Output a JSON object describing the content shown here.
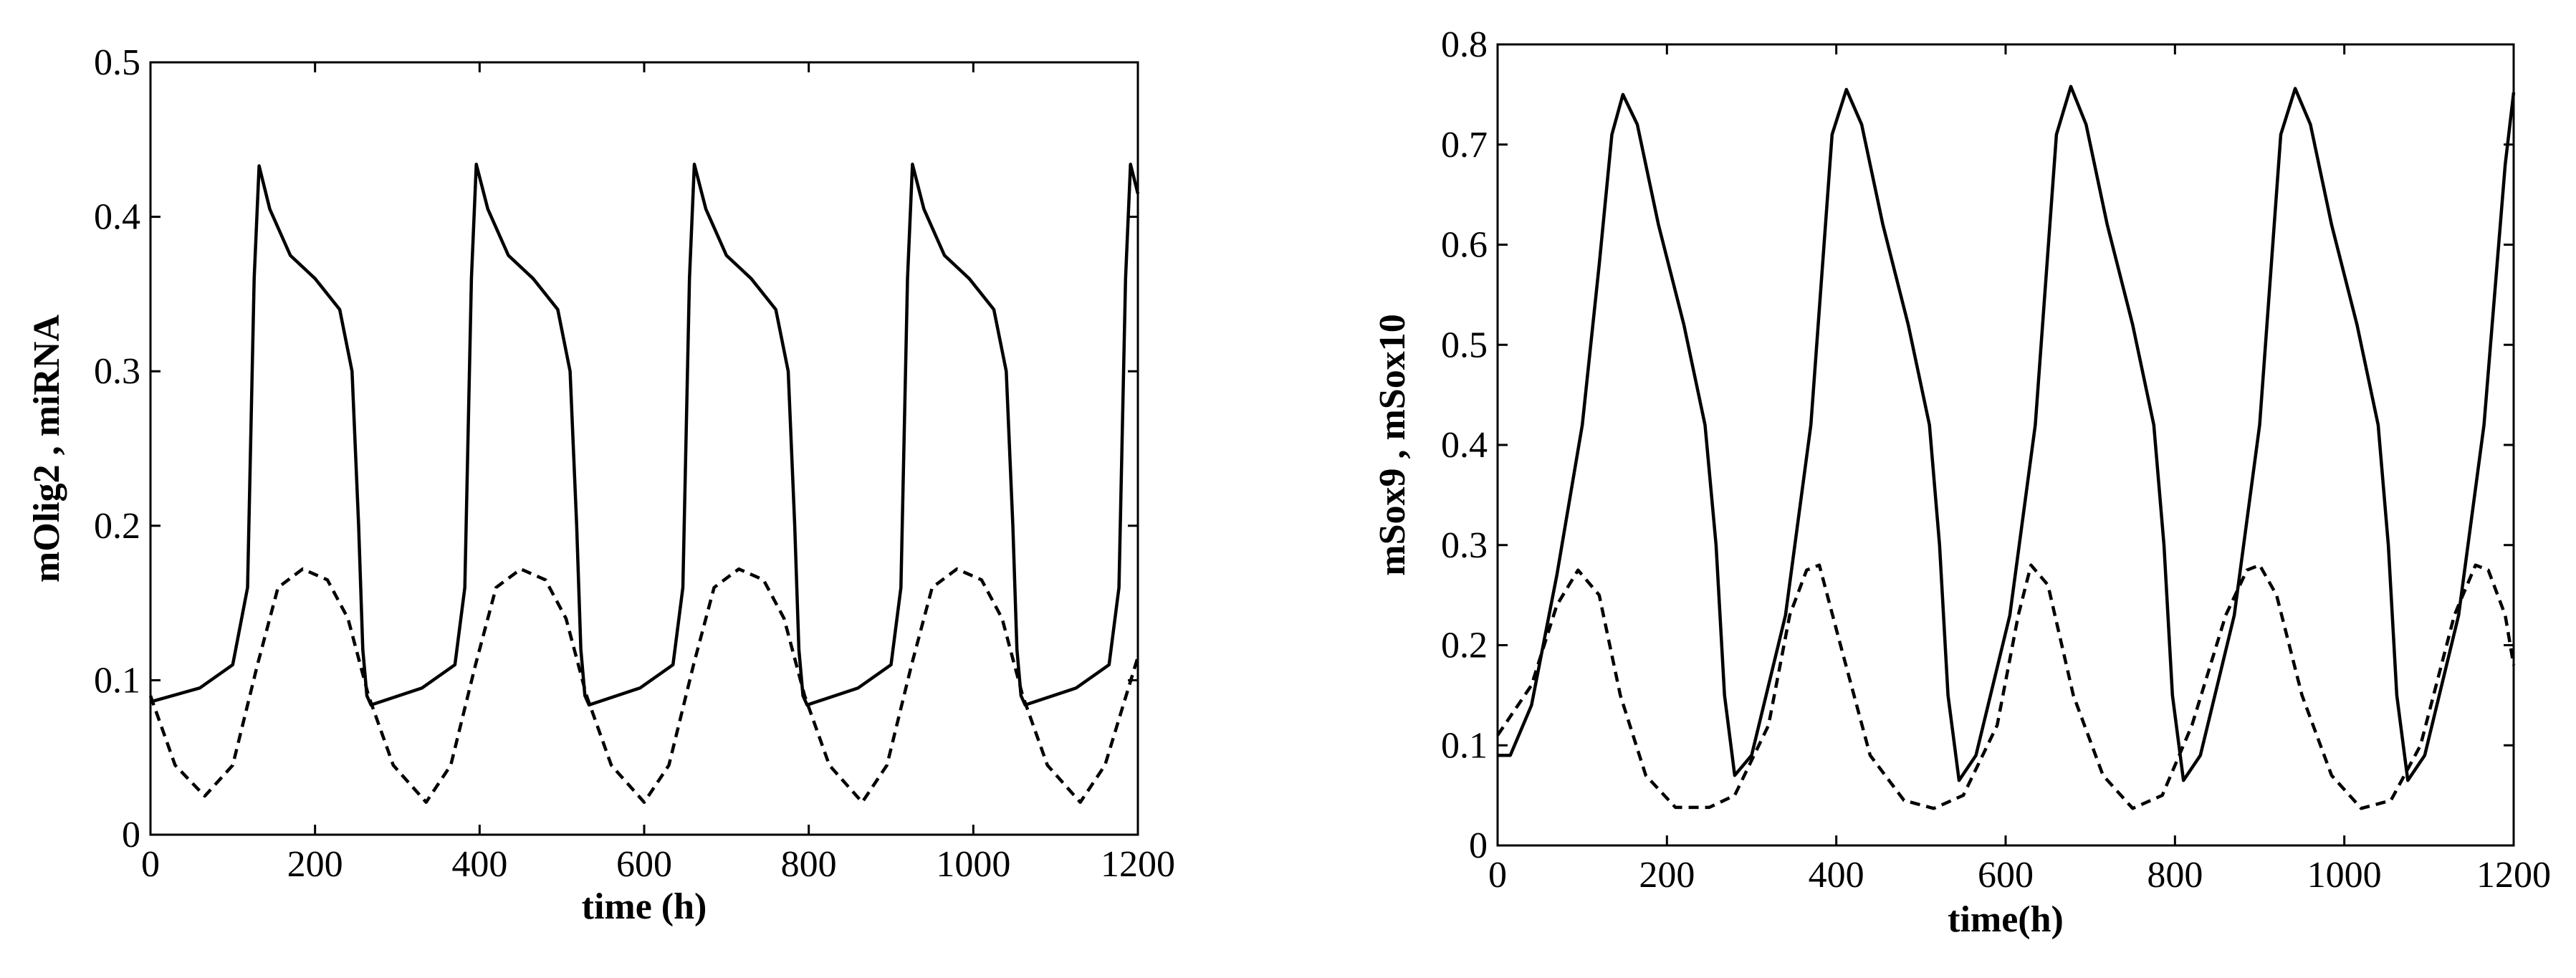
{
  "chart_data": [
    {
      "type": "line",
      "xlabel": "time (h)",
      "ylabel": "mOlig2 , miRNA",
      "xlim": [
        0,
        1200
      ],
      "ylim": [
        0,
        0.5
      ],
      "xticks": [
        "0",
        "200",
        "400",
        "600",
        "800",
        "1000",
        "1200"
      ],
      "yticks": [
        "0",
        "0.1",
        "0.2",
        "0.3",
        "0.4",
        "0.5"
      ],
      "grid": false,
      "legend": "none",
      "series": [
        {
          "style": "solid",
          "color": "#000000",
          "x": [
            0,
            60,
            100,
            118,
            126,
            132,
            145,
            170,
            200,
            230,
            245,
            253,
            258,
            263,
            268,
            330,
            370,
            382,
            390,
            396,
            410,
            435,
            465,
            495,
            510,
            518,
            523,
            528,
            533,
            595,
            635,
            647,
            655,
            661,
            675,
            700,
            730,
            760,
            775,
            783,
            788,
            793,
            798,
            860,
            900,
            912,
            920,
            926,
            940,
            965,
            995,
            1025,
            1040,
            1048,
            1053,
            1058,
            1063,
            1125,
            1165,
            1177,
            1185,
            1191,
            1200
          ],
          "y": [
            0.086,
            0.095,
            0.11,
            0.16,
            0.36,
            0.433,
            0.405,
            0.375,
            0.36,
            0.34,
            0.3,
            0.2,
            0.12,
            0.09,
            0.084,
            0.095,
            0.11,
            0.16,
            0.36,
            0.434,
            0.405,
            0.375,
            0.36,
            0.34,
            0.3,
            0.2,
            0.12,
            0.09,
            0.084,
            0.095,
            0.11,
            0.16,
            0.36,
            0.434,
            0.405,
            0.375,
            0.36,
            0.34,
            0.3,
            0.2,
            0.12,
            0.09,
            0.084,
            0.095,
            0.11,
            0.16,
            0.36,
            0.434,
            0.405,
            0.375,
            0.36,
            0.34,
            0.3,
            0.2,
            0.12,
            0.09,
            0.084,
            0.095,
            0.11,
            0.16,
            0.36,
            0.434,
            0.415
          ]
        },
        {
          "style": "dashed",
          "color": "#000000",
          "x": [
            0,
            30,
            66,
            100,
            130,
            155,
            185,
            215,
            240,
            265,
            295,
            335,
            365,
            395,
            420,
            450,
            480,
            505,
            530,
            560,
            600,
            630,
            660,
            685,
            715,
            745,
            770,
            795,
            825,
            865,
            895,
            925,
            950,
            980,
            1010,
            1035,
            1060,
            1090,
            1130,
            1160,
            1180,
            1200
          ],
          "y": [
            0.09,
            0.045,
            0.025,
            0.045,
            0.11,
            0.16,
            0.172,
            0.165,
            0.14,
            0.09,
            0.045,
            0.021,
            0.045,
            0.11,
            0.16,
            0.172,
            0.165,
            0.14,
            0.09,
            0.045,
            0.021,
            0.045,
            0.11,
            0.16,
            0.172,
            0.165,
            0.14,
            0.09,
            0.045,
            0.021,
            0.045,
            0.11,
            0.16,
            0.172,
            0.165,
            0.14,
            0.09,
            0.045,
            0.021,
            0.045,
            0.08,
            0.115
          ]
        }
      ]
    },
    {
      "type": "line",
      "xlabel": "time(h)",
      "ylabel": "mSox9 , mSox10",
      "xlim": [
        0,
        1200
      ],
      "ylim": [
        0,
        0.8
      ],
      "xticks": [
        "0",
        "200",
        "400",
        "600",
        "800",
        "1000",
        "1200"
      ],
      "yticks": [
        "0",
        "0.1",
        "0.2",
        "0.3",
        "0.4",
        "0.5",
        "0.6",
        "0.7",
        "0.8"
      ],
      "grid": false,
      "legend": "none",
      "series": [
        {
          "style": "solid",
          "color": "#000000",
          "x": [
            0,
            15,
            40,
            70,
            100,
            120,
            135,
            148,
            165,
            190,
            220,
            245,
            258,
            268,
            280,
            300,
            340,
            370,
            395,
            412,
            430,
            455,
            485,
            510,
            522,
            532,
            545,
            565,
            605,
            635,
            660,
            677,
            695,
            720,
            750,
            775,
            787,
            797,
            810,
            830,
            870,
            900,
            925,
            942,
            960,
            985,
            1015,
            1040,
            1052,
            1062,
            1075,
            1095,
            1135,
            1165,
            1190,
            1200
          ],
          "y": [
            0.09,
            0.09,
            0.14,
            0.27,
            0.42,
            0.58,
            0.71,
            0.75,
            0.72,
            0.62,
            0.52,
            0.42,
            0.3,
            0.15,
            0.07,
            0.09,
            0.23,
            0.42,
            0.71,
            0.755,
            0.72,
            0.62,
            0.52,
            0.42,
            0.3,
            0.15,
            0.065,
            0.09,
            0.23,
            0.42,
            0.71,
            0.758,
            0.72,
            0.62,
            0.52,
            0.42,
            0.3,
            0.15,
            0.065,
            0.09,
            0.23,
            0.42,
            0.71,
            0.756,
            0.72,
            0.62,
            0.52,
            0.42,
            0.3,
            0.15,
            0.065,
            0.09,
            0.23,
            0.42,
            0.68,
            0.752
          ]
        },
        {
          "style": "dashed",
          "color": "#000000",
          "x": [
            0,
            40,
            70,
            95,
            120,
            145,
            175,
            210,
            250,
            280,
            320,
            345,
            365,
            380,
            405,
            440,
            480,
            515,
            550,
            590,
            615,
            630,
            650,
            680,
            715,
            750,
            785,
            820,
            860,
            885,
            900,
            920,
            950,
            985,
            1020,
            1055,
            1090,
            1130,
            1155,
            1170,
            1190,
            1200
          ],
          "y": [
            0.11,
            0.16,
            0.24,
            0.275,
            0.25,
            0.15,
            0.07,
            0.038,
            0.038,
            0.05,
            0.12,
            0.23,
            0.275,
            0.28,
            0.2,
            0.09,
            0.045,
            0.037,
            0.05,
            0.12,
            0.23,
            0.28,
            0.26,
            0.15,
            0.07,
            0.037,
            0.05,
            0.12,
            0.23,
            0.275,
            0.28,
            0.25,
            0.15,
            0.07,
            0.037,
            0.045,
            0.1,
            0.23,
            0.28,
            0.275,
            0.23,
            0.18
          ]
        }
      ]
    }
  ]
}
